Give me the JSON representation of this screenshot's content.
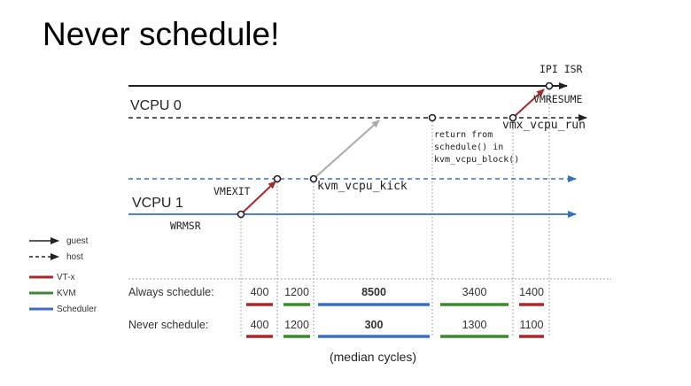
{
  "title": "Never schedule!",
  "colors": {
    "vtx": "#a52a2a",
    "kvm": "#3c8a2e",
    "scheduler": "#3a6fc4",
    "kick_arrow": "#aaaaaa",
    "lines": "#333333"
  },
  "lanes": {
    "vcpu0": "VCPU 0",
    "vcpu1": "VCPU 1"
  },
  "annotations": {
    "ipi_isr": "IPI ISR",
    "vmresume": "VMRESUME",
    "vmx_vcpu_run": "vmx_vcpu_run",
    "return_from_1": "return from",
    "return_from_2": "schedule() in",
    "return_from_3": "kvm_vcpu_block()",
    "kvm_vcpu_kick": "kvm_vcpu_kick",
    "vmexit": "VMEXIT",
    "wrmsr": "WRMSR"
  },
  "legend": {
    "guest": "guest",
    "host": "host",
    "vtx": "VT-x",
    "kvm": "KVM",
    "scheduler": "Scheduler"
  },
  "table": {
    "rows": [
      {
        "label": "Always schedule:",
        "values": [
          "400",
          "1200",
          "8500",
          "3400",
          "1400"
        ]
      },
      {
        "label": "Never schedule:",
        "values": [
          "400",
          "1200",
          "300",
          "1300",
          "1100"
        ]
      }
    ],
    "bold_column": 2,
    "segment_kinds": [
      "vtx",
      "kvm",
      "scheduler",
      "kvm",
      "vtx"
    ]
  },
  "footnote": "(median cycles)"
}
